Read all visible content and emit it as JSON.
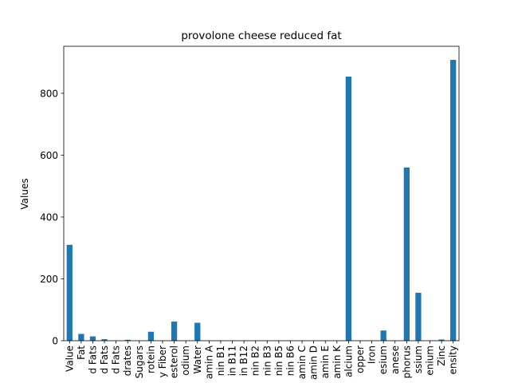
{
  "chart_data": {
    "type": "bar",
    "title": "provolone cheese reduced fat",
    "xlabel": "",
    "ylabel": "Values",
    "ylim": [
      0,
      952
    ],
    "yticks": [
      0,
      200,
      400,
      600,
      800
    ],
    "bar_color": "#1f77b4",
    "grid": false,
    "legend": "none",
    "categories": [
      "Value",
      "Fat",
      "d Fats",
      "d Fats",
      "d Fats",
      "drates",
      "Sugars",
      "rotein",
      "y Fiber",
      "esterol",
      "odium",
      "Water",
      "amin A",
      "nin B1",
      "in B11",
      "in B12",
      "nin B2",
      "nin B3",
      "nin B5",
      "nin B6",
      "amin C",
      "amin D",
      "amin E",
      "amin K",
      "alcium",
      "opper",
      "Iron",
      "esium",
      "anese",
      "phorus",
      "ssium",
      "enium",
      "Zinc",
      "ensity"
    ],
    "values": [
      310,
      22,
      14,
      5,
      0,
      3,
      0,
      29,
      0,
      62,
      0,
      58,
      0,
      0,
      0,
      0,
      0,
      0,
      0,
      0,
      0,
      0,
      0,
      0,
      854,
      0,
      0,
      33,
      0,
      560,
      155,
      0,
      4,
      908
    ]
  }
}
